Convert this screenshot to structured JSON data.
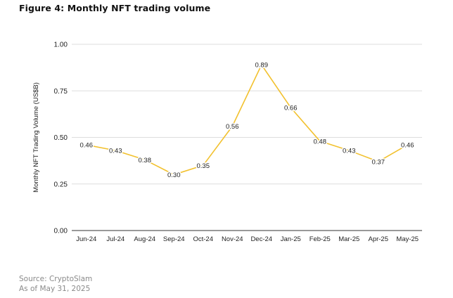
{
  "title": "Figure 4: Monthly NFT trading volume",
  "source": {
    "line1": "Source: CryptoSlam",
    "line2": "As of May 31, 2025"
  },
  "colors": {
    "line": "#F2C12E",
    "grid": "#dddddd",
    "axis": "#333333"
  },
  "chart_data": {
    "type": "line",
    "title": "Figure 4: Monthly NFT trading volume",
    "xlabel": "",
    "ylabel": "Monthly NFT Trading Volume (US$B)",
    "ylim": [
      0,
      1.0
    ],
    "yticks": [
      "0.00",
      "0.25",
      "0.50",
      "0.75",
      "1.00"
    ],
    "ytick_values": [
      0,
      0.25,
      0.5,
      0.75,
      1.0
    ],
    "grid": true,
    "categories": [
      "Jun-24",
      "Jul-24",
      "Aug-24",
      "Sep-24",
      "Oct-24",
      "Nov-24",
      "Dec-24",
      "Jan-25",
      "Feb-25",
      "Mar-25",
      "Apr-25",
      "May-25"
    ],
    "series": [
      {
        "name": "Monthly NFT trading volume",
        "values": [
          0.46,
          0.43,
          0.38,
          0.3,
          0.35,
          0.56,
          0.89,
          0.66,
          0.48,
          0.43,
          0.37,
          0.46
        ],
        "labels": [
          "0.46",
          "0.43",
          "0.38",
          "0.30",
          "0.35",
          "0.56",
          "0.89",
          "0.66",
          "0.48",
          "0.43",
          "0.37",
          "0.46"
        ]
      }
    ]
  }
}
